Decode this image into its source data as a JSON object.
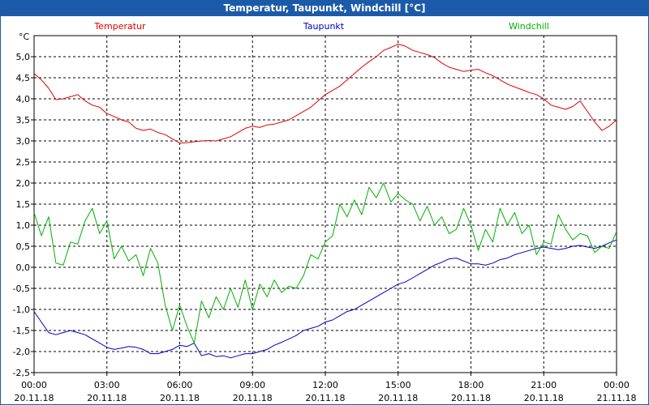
{
  "window": {
    "title": "Temperatur, Taupunkt, Windchill [°C]"
  },
  "chart_data": {
    "type": "line",
    "title": "Temperatur, Taupunkt, Windchill [°C]",
    "ylabel": "°C",
    "xlabel": "",
    "ylim": [
      -2.5,
      5.5
    ],
    "xlim": [
      0,
      24
    ],
    "grid": true,
    "y_ticks": [
      "-2,5",
      "-2,0",
      "-1,5",
      "-1,0",
      "-0,5",
      "0,0",
      "0,5",
      "1,0",
      "1,5",
      "2,0",
      "2,5",
      "3,0",
      "3,5",
      "4,0",
      "4,5",
      "5,0"
    ],
    "x_ticks": [
      {
        "time": "00:00",
        "date": "20.11.18"
      },
      {
        "time": "03:00",
        "date": "20.11.18"
      },
      {
        "time": "06:00",
        "date": "20.11.18"
      },
      {
        "time": "09:00",
        "date": "20.11.18"
      },
      {
        "time": "12:00",
        "date": "20.11.18"
      },
      {
        "time": "15:00",
        "date": "20.11.18"
      },
      {
        "time": "18:00",
        "date": "20.11.18"
      },
      {
        "time": "21:00",
        "date": "20.11.18"
      },
      {
        "time": "00:00",
        "date": "21.11.18"
      }
    ],
    "series": [
      {
        "name": "Temperatur",
        "color": "#e00000",
        "x": [
          0,
          0.3,
          0.6,
          0.9,
          1.2,
          1.5,
          1.8,
          2.1,
          2.4,
          2.7,
          3.0,
          3.3,
          3.6,
          3.9,
          4.2,
          4.5,
          4.8,
          5.1,
          5.4,
          5.7,
          6.0,
          6.3,
          6.6,
          6.9,
          7.2,
          7.5,
          7.8,
          8.1,
          8.4,
          8.7,
          9.0,
          9.3,
          9.6,
          9.9,
          10.2,
          10.5,
          10.8,
          11.1,
          11.4,
          11.7,
          12.0,
          12.3,
          12.6,
          12.9,
          13.2,
          13.5,
          13.8,
          14.1,
          14.4,
          14.7,
          15.0,
          15.3,
          15.6,
          15.9,
          16.2,
          16.5,
          16.8,
          17.1,
          17.4,
          17.7,
          18.0,
          18.3,
          18.6,
          18.9,
          19.2,
          19.5,
          19.8,
          20.1,
          20.4,
          20.7,
          21.0,
          21.3,
          21.6,
          21.9,
          22.2,
          22.5,
          22.8,
          23.1,
          23.4,
          23.7,
          24.0
        ],
        "values": [
          4.6,
          4.45,
          4.25,
          3.98,
          4.0,
          4.05,
          4.1,
          3.95,
          3.85,
          3.8,
          3.65,
          3.58,
          3.5,
          3.45,
          3.3,
          3.25,
          3.28,
          3.2,
          3.15,
          3.05,
          2.95,
          2.96,
          2.98,
          3.0,
          3.01,
          3.0,
          3.05,
          3.1,
          3.2,
          3.3,
          3.35,
          3.32,
          3.38,
          3.4,
          3.45,
          3.5,
          3.6,
          3.7,
          3.8,
          3.95,
          4.1,
          4.2,
          4.3,
          4.45,
          4.6,
          4.75,
          4.88,
          5.0,
          5.15,
          5.22,
          5.3,
          5.25,
          5.15,
          5.1,
          5.05,
          4.98,
          4.85,
          4.75,
          4.7,
          4.65,
          4.68,
          4.7,
          4.62,
          4.55,
          4.45,
          4.35,
          4.28,
          4.22,
          4.15,
          4.1,
          4.0,
          3.85,
          3.8,
          3.75,
          3.82,
          3.95,
          3.7,
          3.45,
          3.25,
          3.35,
          3.5
        ]
      },
      {
        "name": "Taupunkt",
        "color": "#0000c0",
        "x": [
          0,
          0.3,
          0.6,
          0.9,
          1.2,
          1.5,
          1.8,
          2.1,
          2.4,
          2.7,
          3.0,
          3.3,
          3.6,
          3.9,
          4.2,
          4.5,
          4.8,
          5.1,
          5.4,
          5.7,
          6.0,
          6.3,
          6.6,
          6.9,
          7.2,
          7.5,
          7.8,
          8.1,
          8.4,
          8.7,
          9.0,
          9.3,
          9.6,
          9.9,
          10.2,
          10.5,
          10.8,
          11.1,
          11.4,
          11.7,
          12.0,
          12.3,
          12.6,
          12.9,
          13.2,
          13.5,
          13.8,
          14.1,
          14.4,
          14.7,
          15.0,
          15.3,
          15.6,
          15.9,
          16.2,
          16.5,
          16.8,
          17.1,
          17.4,
          17.7,
          18.0,
          18.3,
          18.6,
          18.9,
          19.2,
          19.5,
          19.8,
          20.1,
          20.4,
          20.7,
          21.0,
          21.3,
          21.6,
          21.9,
          22.2,
          22.5,
          22.8,
          23.1,
          23.4,
          23.7,
          24.0
        ],
        "values": [
          -1.05,
          -1.3,
          -1.55,
          -1.6,
          -1.55,
          -1.5,
          -1.55,
          -1.6,
          -1.7,
          -1.8,
          -1.9,
          -1.95,
          -1.92,
          -1.88,
          -1.9,
          -1.95,
          -2.05,
          -2.05,
          -2.0,
          -1.95,
          -1.85,
          -1.88,
          -1.8,
          -2.1,
          -2.05,
          -2.12,
          -2.1,
          -2.15,
          -2.1,
          -2.05,
          -2.05,
          -2.0,
          -1.95,
          -1.85,
          -1.78,
          -1.7,
          -1.62,
          -1.5,
          -1.45,
          -1.4,
          -1.3,
          -1.25,
          -1.15,
          -1.05,
          -1.0,
          -0.9,
          -0.8,
          -0.7,
          -0.6,
          -0.5,
          -0.4,
          -0.35,
          -0.25,
          -0.15,
          -0.05,
          0.05,
          0.12,
          0.2,
          0.22,
          0.15,
          0.08,
          0.08,
          0.05,
          0.1,
          0.18,
          0.22,
          0.3,
          0.35,
          0.4,
          0.45,
          0.48,
          0.45,
          0.42,
          0.45,
          0.5,
          0.52,
          0.48,
          0.45,
          0.5,
          0.58,
          0.65
        ]
      },
      {
        "name": "Windchill",
        "color": "#00b000",
        "x": [
          0,
          0.3,
          0.6,
          0.9,
          1.2,
          1.5,
          1.8,
          2.1,
          2.4,
          2.7,
          3.0,
          3.3,
          3.6,
          3.9,
          4.2,
          4.5,
          4.8,
          5.1,
          5.4,
          5.7,
          6.0,
          6.3,
          6.6,
          6.9,
          7.2,
          7.5,
          7.8,
          8.1,
          8.4,
          8.7,
          9.0,
          9.3,
          9.6,
          9.9,
          10.2,
          10.5,
          10.8,
          11.1,
          11.4,
          11.7,
          12.0,
          12.3,
          12.6,
          12.9,
          13.2,
          13.5,
          13.8,
          14.1,
          14.4,
          14.7,
          15.0,
          15.3,
          15.6,
          15.9,
          16.2,
          16.5,
          16.8,
          17.1,
          17.4,
          17.7,
          18.0,
          18.3,
          18.6,
          18.9,
          19.2,
          19.5,
          19.8,
          20.1,
          20.4,
          20.7,
          21.0,
          21.3,
          21.6,
          21.9,
          22.2,
          22.5,
          22.8,
          23.1,
          23.4,
          23.7,
          24.0
        ],
        "values": [
          1.3,
          0.75,
          1.2,
          0.1,
          0.05,
          0.6,
          0.55,
          1.1,
          1.4,
          0.8,
          1.1,
          0.2,
          0.5,
          0.15,
          0.3,
          -0.2,
          0.45,
          0.1,
          -0.9,
          -1.5,
          -0.9,
          -1.4,
          -1.8,
          -0.8,
          -1.2,
          -0.7,
          -1.0,
          -0.5,
          -0.95,
          -0.3,
          -1.0,
          -0.4,
          -0.7,
          -0.3,
          -0.6,
          -0.45,
          -0.5,
          -0.2,
          0.3,
          0.2,
          0.6,
          0.75,
          1.5,
          1.2,
          1.6,
          1.25,
          1.9,
          1.65,
          2.0,
          1.55,
          1.75,
          1.6,
          1.5,
          1.1,
          1.45,
          1.0,
          1.2,
          0.8,
          0.9,
          1.4,
          1.0,
          0.4,
          0.9,
          0.6,
          1.4,
          1.0,
          1.3,
          0.8,
          1.0,
          0.3,
          0.6,
          0.55,
          1.25,
          0.9,
          0.65,
          0.8,
          0.75,
          0.35,
          0.5,
          0.45,
          0.85
        ]
      }
    ]
  }
}
